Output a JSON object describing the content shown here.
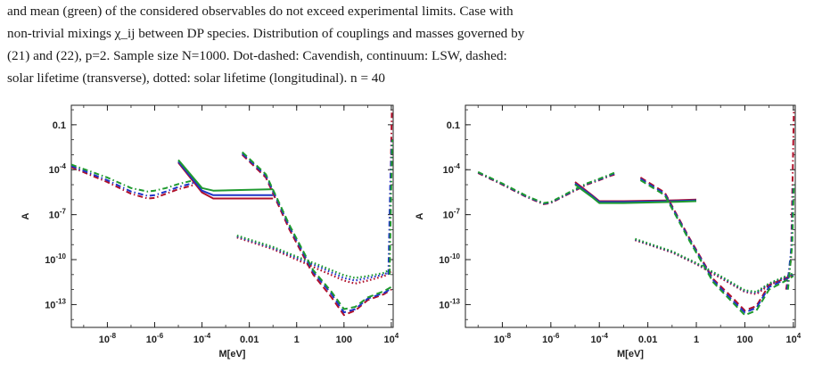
{
  "caption": {
    "lines": [
      "and mean (green) of the considered observables do not exceed experimental limits. Case with",
      "non-trivial mixings χ_ij between DP species. Distribution of couplings and masses governed by",
      "(21) and (22), p=2. Sample size N=1000. Dot-dashed: Cavendish, continuum: LSW, dashed:",
      "solar lifetime (transverse), dotted: solar lifetime (longitudinal). n = 40"
    ]
  },
  "colors": {
    "red": "#b0102a",
    "blue": "#1f34c8",
    "green": "#1f9a2f",
    "black": "#222222"
  },
  "chart_data": [
    {
      "type": "line",
      "xlabel": "M[eV]",
      "ylabel": "A",
      "xscale": "log",
      "yscale": "log",
      "xlim": [
        3e-10,
        12000
      ],
      "ylim": [
        3e-15,
        2
      ],
      "x_ticks": [
        "10^-8",
        "10^-6",
        "10^-4",
        "0.01",
        "1",
        "100",
        "10^4"
      ],
      "y_ticks": [
        "0.1",
        "10^-4",
        "10^-7",
        "10^-10",
        "10^-13"
      ],
      "series": [
        {
          "style": "dot-dashed",
          "color": "red",
          "x": [
            3e-10,
            1e-08,
            1e-07,
            5e-07,
            1e-06,
            3e-06,
            1e-05,
            3e-05,
            5e-05
          ],
          "y": [
            0.00015,
            1.5e-05,
            2.5e-06,
            1.2e-06,
            1.3e-06,
            2.5e-06,
            5e-06,
            8e-06,
            1e-05
          ]
        },
        {
          "style": "dot-dashed",
          "color": "blue",
          "x": [
            3e-10,
            1e-08,
            1e-07,
            5e-07,
            1e-06,
            3e-06,
            1e-05,
            3e-05,
            5e-05
          ],
          "y": [
            0.00018,
            2e-05,
            3.5e-06,
            1.8e-06,
            2e-06,
            3.5e-06,
            7e-06,
            1.1e-05,
            1.4e-05
          ]
        },
        {
          "style": "dot-dashed",
          "color": "green",
          "x": [
            3e-10,
            1e-08,
            1e-07,
            5e-07,
            1e-06,
            3e-06,
            1e-05,
            3e-05,
            5e-05
          ],
          "y": [
            0.00022,
            3e-05,
            6e-06,
            3.5e-06,
            4e-06,
            6e-06,
            1.1e-05,
            1.7e-05,
            2e-05
          ]
        },
        {
          "style": "solid",
          "color": "red",
          "x": [
            1e-05,
            0.0001,
            0.0003,
            0.1
          ],
          "y": [
            0.0003,
            3e-06,
            1.2e-06,
            1.2e-06
          ]
        },
        {
          "style": "solid",
          "color": "blue",
          "x": [
            1e-05,
            0.0001,
            0.0003,
            0.1
          ],
          "y": [
            0.00035,
            4e-06,
            2e-06,
            2e-06
          ]
        },
        {
          "style": "solid",
          "color": "green",
          "x": [
            1e-05,
            0.0001,
            0.0003,
            0.1
          ],
          "y": [
            0.00045,
            6e-06,
            4e-06,
            5e-06
          ]
        },
        {
          "style": "dashed",
          "color": "red",
          "x": [
            0.005,
            0.05,
            0.5,
            5,
            30,
            100,
            300,
            1000,
            5000,
            10000
          ],
          "y": [
            0.001,
            3e-05,
            1e-08,
            1e-11,
            3e-13,
            2e-14,
            4e-14,
            2e-13,
            5e-13,
            1e-12
          ]
        },
        {
          "style": "dashed",
          "color": "blue",
          "x": [
            0.005,
            0.05,
            0.5,
            5,
            30,
            100,
            300,
            1000,
            5000,
            10000
          ],
          "y": [
            0.0012,
            4e-05,
            1.5e-08,
            1.5e-11,
            5e-13,
            3e-14,
            5e-14,
            2.5e-13,
            6e-13,
            1.2e-12
          ]
        },
        {
          "style": "dashed",
          "color": "green",
          "x": [
            0.005,
            0.05,
            0.5,
            5,
            30,
            100,
            300,
            1000,
            5000,
            10000
          ],
          "y": [
            0.0015,
            5e-05,
            2e-08,
            2e-11,
            7e-13,
            5e-14,
            7e-14,
            3e-13,
            8e-13,
            1.5e-12
          ]
        },
        {
          "style": "dotted",
          "color": "red",
          "x": [
            0.003,
            0.1,
            1,
            10,
            100,
            300,
            1000,
            5000,
            10000
          ],
          "y": [
            3e-09,
            5e-10,
            1e-10,
            2e-11,
            4e-12,
            2.5e-12,
            4e-12,
            8e-12,
            1.5e-11
          ]
        },
        {
          "style": "dotted",
          "color": "blue",
          "x": [
            0.003,
            0.1,
            1,
            10,
            100,
            300,
            1000,
            5000,
            10000
          ],
          "y": [
            3.5e-09,
            6e-10,
            1.3e-10,
            3e-11,
            6e-12,
            4e-12,
            6e-12,
            1e-11,
            2e-11
          ]
        },
        {
          "style": "dotted",
          "color": "green",
          "x": [
            0.003,
            0.1,
            1,
            10,
            100,
            300,
            1000,
            5000,
            10000
          ],
          "y": [
            4e-09,
            7e-10,
            1.6e-10,
            4e-11,
            9e-12,
            6e-12,
            8e-12,
            1.3e-11,
            2.5e-11
          ]
        },
        {
          "style": "dot-dashed",
          "color": "red",
          "x": [
            8000,
            9500,
            10500
          ],
          "y": [
            1e-11,
            0.0001,
            1
          ]
        },
        {
          "style": "dot-dashed",
          "color": "blue",
          "x": [
            7500,
            9000,
            10500
          ],
          "y": [
            1e-11,
            1e-05,
            0.01
          ]
        },
        {
          "style": "dot-dashed",
          "color": "green",
          "x": [
            8500,
            10000,
            11000
          ],
          "y": [
            1e-11,
            1e-05,
            0.01
          ]
        }
      ]
    },
    {
      "type": "line",
      "xlabel": "M[eV]",
      "ylabel": "A",
      "xscale": "log",
      "yscale": "log",
      "xlim": [
        3e-10,
        12000
      ],
      "ylim": [
        3e-15,
        2
      ],
      "x_ticks": [
        "10^-8",
        "10^-6",
        "10^-4",
        "0.01",
        "1",
        "100",
        "10^4"
      ],
      "y_ticks": [
        "0.1",
        "10^-4",
        "10^-7",
        "10^-10",
        "10^-13"
      ],
      "series": [
        {
          "style": "dot-dashed",
          "color": "red",
          "x": [
            1e-09,
            1e-08,
            1e-07,
            5e-07,
            1e-06,
            3e-06,
            1e-05,
            3e-05,
            0.0001,
            0.0003,
            0.0005
          ],
          "y": [
            6e-05,
            1e-05,
            1.5e-06,
            5e-07,
            6e-07,
            1.5e-06,
            4e-06,
            1e-05,
            2e-05,
            4e-05,
            5e-05
          ]
        },
        {
          "style": "dot-dashed",
          "color": "blue",
          "x": [
            1e-09,
            1e-08,
            1e-07,
            5e-07,
            1e-06,
            3e-06,
            1e-05,
            3e-05,
            0.0001,
            0.0003,
            0.0005
          ],
          "y": [
            6.5e-05,
            1.1e-05,
            1.6e-06,
            5.5e-07,
            6.5e-07,
            1.6e-06,
            4.5e-06,
            1.1e-05,
            2.2e-05,
            4.5e-05,
            6e-05
          ]
        },
        {
          "style": "dot-dashed",
          "color": "green",
          "x": [
            1e-09,
            1e-08,
            1e-07,
            5e-07,
            1e-06,
            3e-06,
            1e-05,
            3e-05,
            0.0001,
            0.0003,
            0.0005
          ],
          "y": [
            7e-05,
            1.2e-05,
            1.8e-06,
            6e-07,
            7e-07,
            1.8e-06,
            5e-06,
            1.2e-05,
            2.5e-05,
            5e-05,
            7e-05
          ]
        },
        {
          "style": "solid",
          "color": "red",
          "x": [
            1e-05,
            5e-05,
            0.0001,
            0.001,
            0.1,
            1
          ],
          "y": [
            1.5e-05,
            2e-06,
            8e-07,
            8e-07,
            9e-07,
            1e-06
          ]
        },
        {
          "style": "solid",
          "color": "blue",
          "x": [
            1e-05,
            5e-05,
            0.0001,
            0.001,
            0.1,
            1
          ],
          "y": [
            1.2e-05,
            1.8e-06,
            7e-07,
            7e-07,
            8e-07,
            9e-07
          ]
        },
        {
          "style": "solid",
          "color": "green",
          "x": [
            1e-05,
            5e-05,
            0.0001,
            0.001,
            0.1,
            1
          ],
          "y": [
            1e-05,
            1.5e-06,
            6e-07,
            6e-07,
            7e-07,
            8e-07
          ]
        },
        {
          "style": "dashed",
          "color": "red",
          "x": [
            0.005,
            0.05,
            0.5,
            5,
            30,
            100,
            300,
            1000,
            5000,
            10000
          ],
          "y": [
            3e-05,
            3e-06,
            3e-09,
            5e-12,
            3e-13,
            4e-14,
            8e-14,
            2e-12,
            6e-12,
            1e-11
          ]
        },
        {
          "style": "dashed",
          "color": "blue",
          "x": [
            0.005,
            0.05,
            0.5,
            5,
            30,
            100,
            300,
            1000,
            5000,
            10000
          ],
          "y": [
            2.5e-05,
            2.5e-06,
            2.5e-09,
            4e-12,
            2e-13,
            3e-14,
            6e-14,
            1.5e-12,
            5e-12,
            9e-12
          ]
        },
        {
          "style": "dashed",
          "color": "green",
          "x": [
            0.005,
            0.05,
            0.5,
            5,
            30,
            100,
            300,
            1000,
            5000,
            10000
          ],
          "y": [
            2e-05,
            2e-06,
            2e-09,
            3e-12,
            1.5e-13,
            2e-14,
            4e-14,
            1e-12,
            4e-12,
            8e-12
          ]
        },
        {
          "style": "dotted",
          "color": "red",
          "x": [
            0.003,
            0.1,
            1,
            10,
            100,
            300,
            1000,
            5000,
            10000
          ],
          "y": [
            2e-09,
            3e-10,
            5e-11,
            6e-12,
            7e-13,
            5e-13,
            2e-12,
            6e-12,
            1e-11
          ]
        },
        {
          "style": "dotted",
          "color": "blue",
          "x": [
            0.003,
            0.1,
            1,
            10,
            100,
            300,
            1000,
            5000,
            10000
          ],
          "y": [
            2.2e-09,
            3.3e-10,
            5.5e-11,
            7e-12,
            8e-13,
            6e-13,
            2.3e-12,
            7e-12,
            1.1e-11
          ]
        },
        {
          "style": "dotted",
          "color": "green",
          "x": [
            0.003,
            0.1,
            1,
            10,
            100,
            300,
            1000,
            5000,
            10000
          ],
          "y": [
            2.4e-09,
            3.6e-10,
            6e-11,
            8e-12,
            9e-13,
            7e-13,
            2.6e-12,
            8e-12,
            1.2e-11
          ]
        },
        {
          "style": "dot-dashed",
          "color": "red",
          "x": [
            5000,
            8000,
            9500,
            10500
          ],
          "y": [
            1e-12,
            1e-10,
            0.0001,
            1
          ]
        },
        {
          "style": "dot-dashed",
          "color": "blue",
          "x": [
            5500,
            8500,
            10000
          ],
          "y": [
            1e-12,
            1e-09,
            1e-05
          ]
        },
        {
          "style": "dot-dashed",
          "color": "green",
          "x": [
            6000,
            9000,
            10500
          ],
          "y": [
            1e-12,
            1e-09,
            1e-05
          ]
        }
      ]
    }
  ]
}
